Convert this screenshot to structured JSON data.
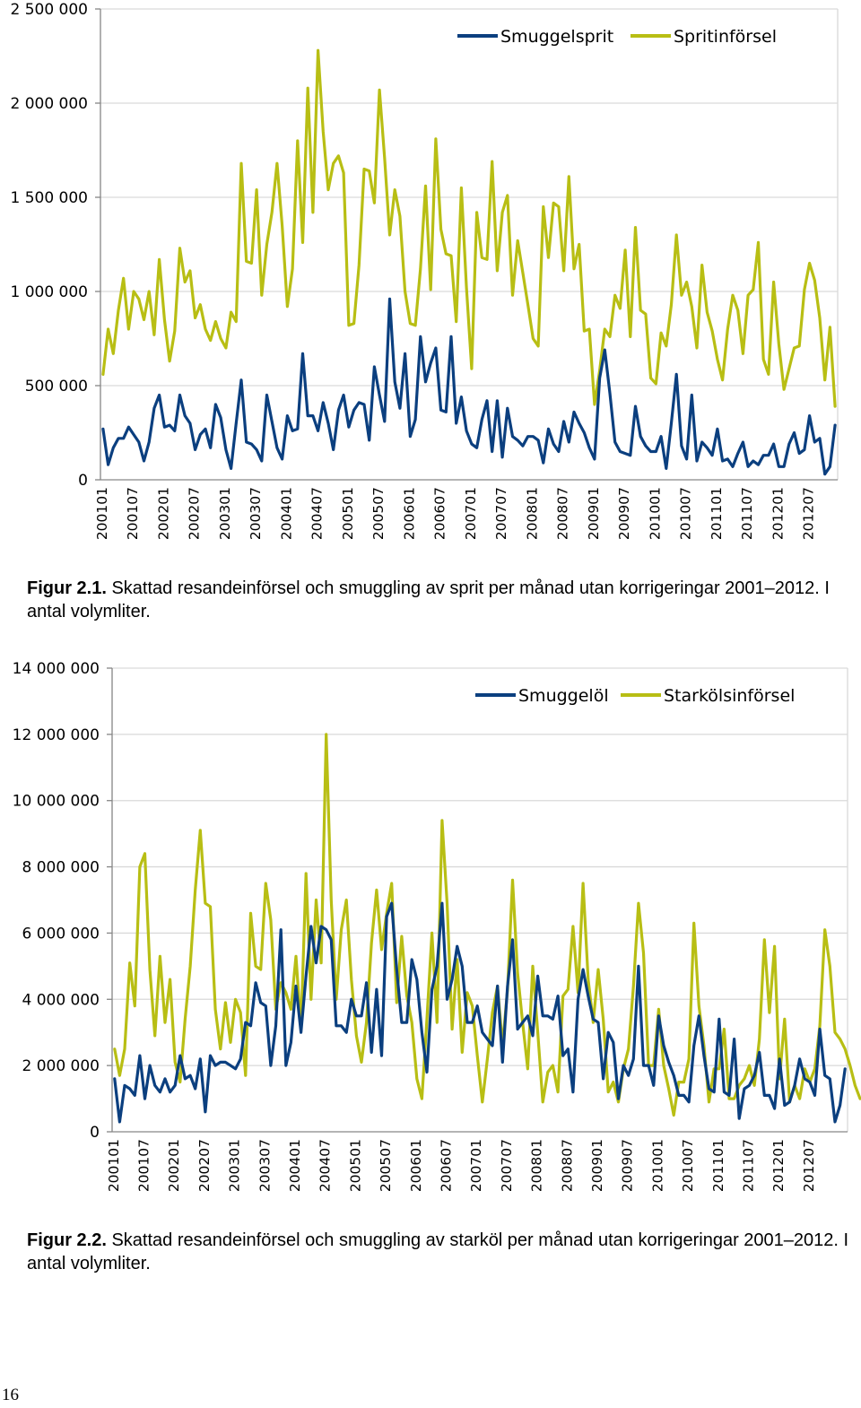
{
  "colors": {
    "smuggle": "#0B3F7F",
    "import": "#B8BE14",
    "grid": "#D9D9D9",
    "axis": "#868686"
  },
  "chart_data": [
    {
      "type": "line",
      "title": "",
      "xlabel": "",
      "ylabel": "",
      "ylim": [
        0,
        2500000
      ],
      "yticks": [
        0,
        500000,
        1000000,
        1500000,
        2000000,
        2500000
      ],
      "ytick_labels": [
        "0",
        "500 000",
        "1 000 000",
        "1 500 000",
        "2 000 000",
        "2 500 000"
      ],
      "xtick_labels": [
        "200101",
        "200107",
        "200201",
        "200207",
        "200301",
        "200307",
        "200401",
        "200407",
        "200501",
        "200507",
        "200601",
        "200607",
        "200701",
        "200707",
        "200801",
        "200807",
        "200901",
        "200907",
        "201001",
        "201007",
        "201101",
        "201107",
        "201201",
        "201207"
      ],
      "legend_position": "top-right",
      "series": [
        {
          "name": "Smuggelsprit",
          "color_key": "smuggle",
          "values": [
            270000,
            80000,
            170000,
            220000,
            220000,
            280000,
            240000,
            200000,
            100000,
            200000,
            380000,
            450000,
            280000,
            290000,
            260000,
            450000,
            340000,
            300000,
            160000,
            240000,
            270000,
            170000,
            400000,
            330000,
            160000,
            60000,
            300000,
            530000,
            200000,
            190000,
            160000,
            100000,
            450000,
            310000,
            170000,
            110000,
            340000,
            260000,
            270000,
            670000,
            340000,
            340000,
            260000,
            410000,
            300000,
            160000,
            370000,
            450000,
            280000,
            370000,
            410000,
            400000,
            210000,
            600000,
            450000,
            310000,
            960000,
            520000,
            380000,
            670000,
            230000,
            320000,
            760000,
            520000,
            620000,
            700000,
            370000,
            360000,
            760000,
            300000,
            440000,
            260000,
            190000,
            170000,
            320000,
            420000,
            150000,
            420000,
            120000,
            380000,
            230000,
            210000,
            180000,
            230000,
            230000,
            210000,
            90000,
            270000,
            190000,
            150000,
            310000,
            200000,
            360000,
            300000,
            250000,
            170000,
            110000,
            540000,
            690000,
            460000,
            200000,
            150000,
            140000,
            130000,
            390000,
            230000,
            180000,
            150000,
            150000,
            230000,
            60000,
            300000,
            560000,
            180000,
            110000,
            450000,
            100000,
            200000,
            170000,
            130000,
            270000,
            100000,
            110000,
            70000,
            140000,
            200000,
            70000,
            100000,
            80000,
            130000,
            130000,
            190000,
            70000,
            70000,
            190000,
            250000,
            140000,
            160000,
            340000,
            200000,
            220000,
            30000,
            70000,
            290000
          ]
        },
        {
          "name": "Spritinförsel",
          "color_key": "import",
          "values": [
            560000,
            800000,
            670000,
            900000,
            1070000,
            800000,
            1000000,
            960000,
            850000,
            1000000,
            770000,
            1170000,
            850000,
            630000,
            790000,
            1230000,
            1050000,
            1110000,
            860000,
            930000,
            800000,
            740000,
            840000,
            750000,
            700000,
            890000,
            840000,
            1680000,
            1160000,
            1150000,
            1540000,
            980000,
            1250000,
            1420000,
            1680000,
            1350000,
            920000,
            1120000,
            1800000,
            1260000,
            2080000,
            1420000,
            2280000,
            1850000,
            1540000,
            1680000,
            1720000,
            1630000,
            820000,
            830000,
            1140000,
            1650000,
            1640000,
            1470000,
            2070000,
            1710000,
            1300000,
            1540000,
            1400000,
            1000000,
            830000,
            820000,
            1120000,
            1560000,
            1010000,
            1810000,
            1330000,
            1200000,
            1190000,
            840000,
            1550000,
            1020000,
            590000,
            1420000,
            1180000,
            1170000,
            1690000,
            1110000,
            1420000,
            1510000,
            980000,
            1270000,
            1100000,
            930000,
            750000,
            710000,
            1450000,
            1180000,
            1470000,
            1450000,
            1110000,
            1610000,
            1120000,
            1250000,
            790000,
            800000,
            400000,
            580000,
            800000,
            760000,
            980000,
            910000,
            1220000,
            760000,
            1340000,
            900000,
            880000,
            540000,
            510000,
            780000,
            710000,
            930000,
            1300000,
            980000,
            1050000,
            920000,
            700000,
            1140000,
            890000,
            790000,
            640000,
            530000,
            800000,
            980000,
            900000,
            670000,
            980000,
            1010000,
            1260000,
            640000,
            560000,
            1050000,
            720000,
            480000,
            590000,
            700000,
            710000,
            1010000,
            1150000,
            1060000,
            860000,
            530000,
            810000,
            390000
          ]
        }
      ]
    },
    {
      "type": "line",
      "title": "",
      "xlabel": "",
      "ylabel": "",
      "ylim": [
        0,
        14000000
      ],
      "yticks": [
        0,
        2000000,
        4000000,
        6000000,
        8000000,
        10000000,
        12000000,
        14000000
      ],
      "ytick_labels": [
        "0",
        "2 000 000",
        "4 000 000",
        "6 000 000",
        "8 000 000",
        "10 000 000",
        "12 000 000",
        "14 000 000"
      ],
      "xtick_labels": [
        "200101",
        "200107",
        "200201",
        "200207",
        "200301",
        "200307",
        "200401",
        "200407",
        "200501",
        "200507",
        "200601",
        "200607",
        "200701",
        "200707",
        "200801",
        "200807",
        "200901",
        "200907",
        "201001",
        "201007",
        "201101",
        "201107",
        "201201",
        "201207"
      ],
      "legend_position": "top-right",
      "series": [
        {
          "name": "Smuggelöl",
          "color_key": "smuggle",
          "values": [
            1600000,
            300000,
            1400000,
            1300000,
            1100000,
            2300000,
            1000000,
            2000000,
            1400000,
            1200000,
            1600000,
            1200000,
            1400000,
            2300000,
            1600000,
            1700000,
            1300000,
            2200000,
            600000,
            2300000,
            2000000,
            2100000,
            2100000,
            2000000,
            1900000,
            2200000,
            3300000,
            3200000,
            4500000,
            3900000,
            3800000,
            2000000,
            3200000,
            6100000,
            2000000,
            2700000,
            4400000,
            3000000,
            4700000,
            6200000,
            5100000,
            6200000,
            6100000,
            5800000,
            3200000,
            3200000,
            3000000,
            4000000,
            3500000,
            3500000,
            4500000,
            2400000,
            4300000,
            2300000,
            6500000,
            6900000,
            4900000,
            3300000,
            3300000,
            5200000,
            4600000,
            3000000,
            1800000,
            4300000,
            5000000,
            6900000,
            4000000,
            4600000,
            5600000,
            5000000,
            3300000,
            3300000,
            3800000,
            3000000,
            2800000,
            2600000,
            4400000,
            2100000,
            4400000,
            5800000,
            3100000,
            3300000,
            3500000,
            2900000,
            4700000,
            3500000,
            3500000,
            3400000,
            4100000,
            2300000,
            2500000,
            1200000,
            4000000,
            4900000,
            4100000,
            3400000,
            3300000,
            1600000,
            3000000,
            2700000,
            1000000,
            2000000,
            1700000,
            2200000,
            5000000,
            2000000,
            2000000,
            1400000,
            3500000,
            2600000,
            2100000,
            1700000,
            1100000,
            1100000,
            900000,
            2600000,
            3500000,
            2300000,
            1300000,
            1200000,
            3400000,
            1200000,
            1100000,
            2800000,
            400000,
            1300000,
            1400000,
            1700000,
            2400000,
            1100000,
            1100000,
            700000,
            2200000,
            800000,
            900000,
            1400000,
            2200000,
            1600000,
            1500000,
            1100000,
            3100000,
            1700000,
            1600000,
            300000,
            800000,
            1900000
          ]
        },
        {
          "name": "Starkölsinförsel",
          "color_key": "import",
          "values": [
            2500000,
            1700000,
            2500000,
            5100000,
            3800000,
            8000000,
            8400000,
            4900000,
            2900000,
            5300000,
            3300000,
            4600000,
            2100000,
            1500000,
            3400000,
            5000000,
            7300000,
            9100000,
            6900000,
            6800000,
            3700000,
            2500000,
            3900000,
            2700000,
            4000000,
            3600000,
            1700000,
            6600000,
            5000000,
            4900000,
            7500000,
            6400000,
            3700000,
            4500000,
            4200000,
            3700000,
            5300000,
            3100000,
            7800000,
            4000000,
            7000000,
            5100000,
            12000000,
            7000000,
            4000000,
            6100000,
            7000000,
            4600000,
            2900000,
            2100000,
            3300000,
            5700000,
            7300000,
            5500000,
            6600000,
            7500000,
            3900000,
            5900000,
            4100000,
            3300000,
            1600000,
            1000000,
            3400000,
            6000000,
            3300000,
            9400000,
            6900000,
            3100000,
            5200000,
            2400000,
            4200000,
            3800000,
            2300000,
            900000,
            2200000,
            3600000,
            4400000,
            2600000,
            4300000,
            7600000,
            4800000,
            3300000,
            1900000,
            5000000,
            3000000,
            900000,
            1800000,
            2000000,
            1200000,
            4100000,
            4300000,
            6200000,
            4200000,
            7500000,
            4600000,
            3300000,
            4900000,
            3400000,
            1200000,
            1500000,
            900000,
            1900000,
            2500000,
            4400000,
            6900000,
            5400000,
            2000000,
            2000000,
            3700000,
            2000000,
            1300000,
            500000,
            1500000,
            1500000,
            2200000,
            6300000,
            3800000,
            2600000,
            900000,
            1900000,
            1900000,
            3100000,
            1000000,
            1000000,
            1400000,
            1600000,
            2000000,
            1400000,
            2800000,
            5800000,
            3600000,
            5600000,
            1600000,
            3400000,
            900000,
            1400000,
            1000000,
            1900000,
            1500000,
            1900000,
            3200000,
            6100000,
            5000000,
            3000000,
            2800000,
            2500000,
            2000000,
            1400000,
            1000000
          ]
        }
      ]
    }
  ],
  "caption1": {
    "label": "Figur 2.1.",
    "text": " Skattad resandeinförsel och smuggling av sprit per månad utan korrigeringar 2001–2012. I antal volymliter."
  },
  "caption2": {
    "label": "Figur 2.2.",
    "text": " Skattad resandeinförsel och smuggling av starköl per månad utan korrigeringar 2001–2012. I antal volymliter."
  },
  "page_number": "16"
}
